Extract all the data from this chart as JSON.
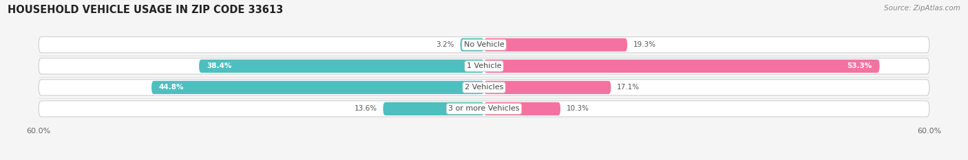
{
  "title": "HOUSEHOLD VEHICLE USAGE IN ZIP CODE 33613",
  "source": "Source: ZipAtlas.com",
  "categories": [
    "No Vehicle",
    "1 Vehicle",
    "2 Vehicles",
    "3 or more Vehicles"
  ],
  "owner_values": [
    3.2,
    38.4,
    44.8,
    13.6
  ],
  "renter_values": [
    19.3,
    53.3,
    17.1,
    10.3
  ],
  "owner_color": "#4DBFBF",
  "renter_color": "#F472A0",
  "xlim": 60.0,
  "background_color": "#f5f5f5",
  "bar_bg_color": "#e8e8e8",
  "bar_border_color": "#d0d0d0",
  "title_fontsize": 10.5,
  "source_fontsize": 7.5,
  "label_fontsize": 8,
  "value_fontsize": 7.5,
  "axis_label_fontsize": 8,
  "bar_height": 0.62,
  "bg_bar_height": 0.75
}
